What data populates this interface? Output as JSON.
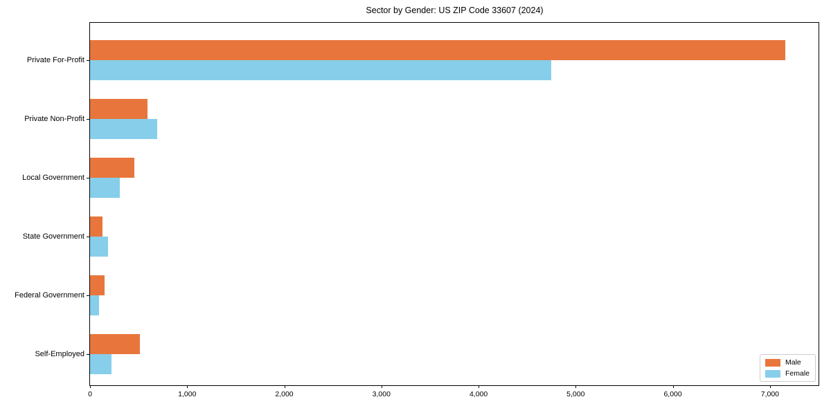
{
  "chart_data": {
    "type": "bar",
    "orientation": "horizontal",
    "title": "Sector by Gender: US ZIP Code 33607 (2024)",
    "categories": [
      "Private For-Profit",
      "Private Non-Profit",
      "Local Government",
      "State Government",
      "Federal Government",
      "Self-Employed"
    ],
    "series": [
      {
        "name": "Male",
        "color": "#E8763C",
        "values": [
          7160,
          590,
          455,
          125,
          150,
          510
        ]
      },
      {
        "name": "Female",
        "color": "#87CEEB",
        "values": [
          4750,
          690,
          305,
          185,
          90,
          220
        ]
      }
    ],
    "xlabel": "",
    "ylabel": "",
    "xlim": [
      0,
      7500
    ],
    "x_ticks": [
      0,
      1000,
      2000,
      3000,
      4000,
      5000,
      6000,
      7000
    ],
    "x_tick_labels": [
      "0",
      "1,000",
      "2,000",
      "3,000",
      "4,000",
      "5,000",
      "6,000",
      "7,000"
    ],
    "legend_position": "lower right",
    "grid": false,
    "background_color": "#ffffff",
    "spine_color": "#000000"
  }
}
